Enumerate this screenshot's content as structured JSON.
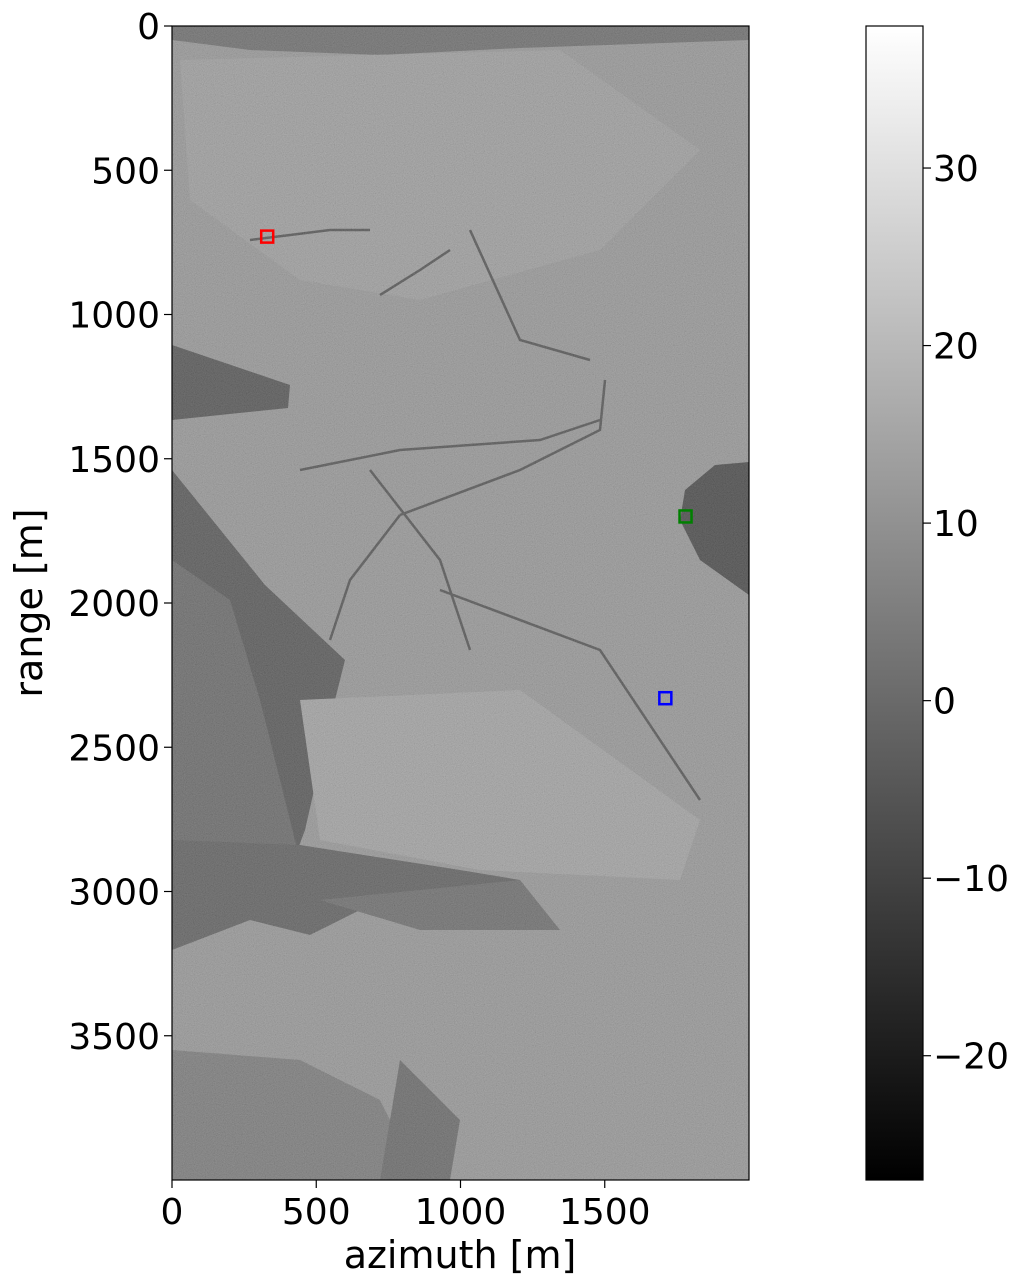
{
  "chart_data": {
    "type": "heatmap",
    "title": "",
    "xlabel": "azimuth [m]",
    "ylabel": "range [m]",
    "xlim": [
      0,
      2000
    ],
    "ylim": [
      4000,
      0
    ],
    "xticks": [
      0,
      500,
      1000,
      1500
    ],
    "yticks": [
      0,
      500,
      1000,
      1500,
      2000,
      2500,
      3000,
      3500
    ],
    "colormap": "gray",
    "colorbar": {
      "range": [
        -27,
        38
      ],
      "ticks": [
        -20,
        -10,
        0,
        10,
        20,
        30
      ],
      "tick_labels": [
        "−20",
        "−10",
        "0",
        "10",
        "20",
        "30"
      ]
    },
    "markers": [
      {
        "name": "red",
        "azimuth": 330,
        "range": 730,
        "color": "#ff0000"
      },
      {
        "name": "green",
        "azimuth": 1780,
        "range": 1700,
        "color": "#008000"
      },
      {
        "name": "blue",
        "azimuth": 1710,
        "range": 2330,
        "color": "#0000ff"
      }
    ],
    "image_description": "grayscale SAR backscatter image of forested terrain"
  }
}
